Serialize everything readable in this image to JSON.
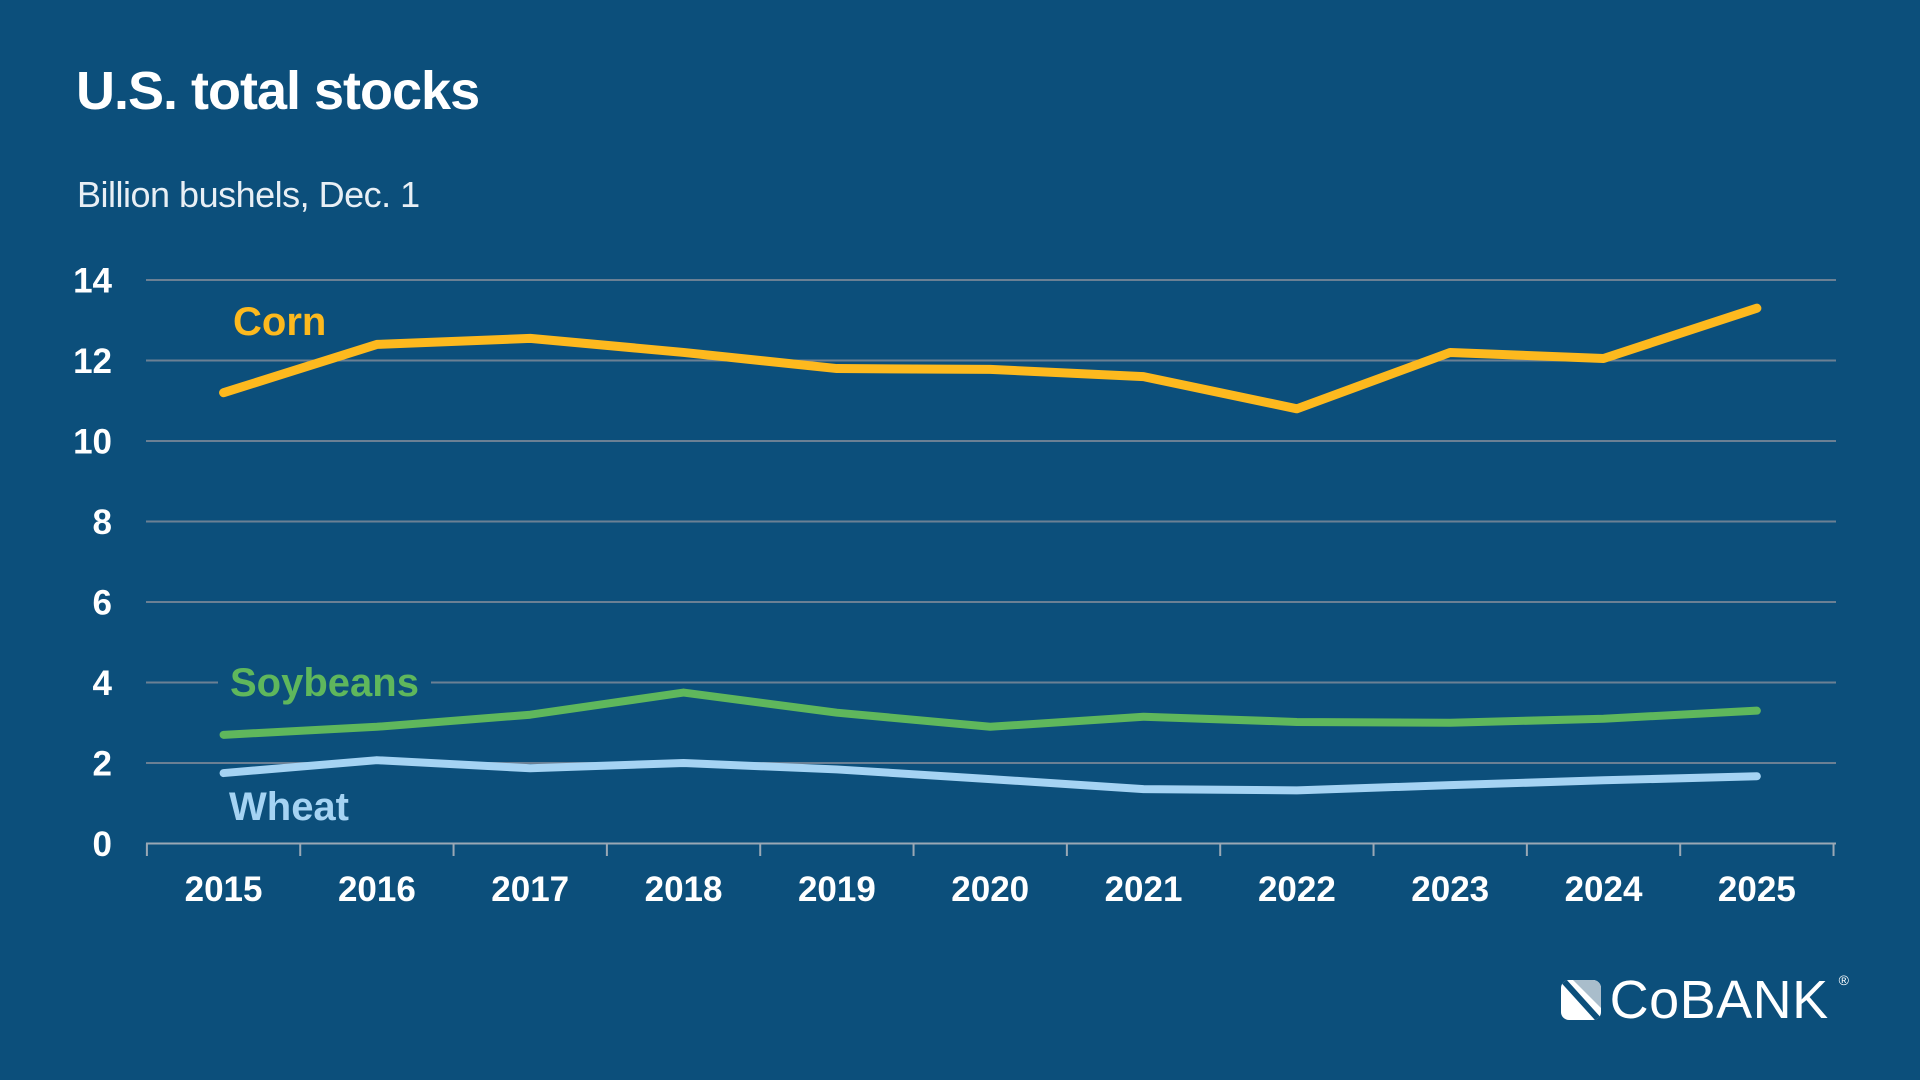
{
  "header": {
    "title": "U.S. total stocks",
    "subtitle": "Billion bushels, Dec. 1"
  },
  "colors": {
    "bg": "#0C4F7B",
    "title": "#FFFFFF",
    "subtitle": "#E8EFF5",
    "gridline": "#6B8094",
    "axis": "#9AA8B5",
    "tick_label": "#FFFFFF",
    "corn": "#FDB91E",
    "soybeans": "#5FB75C",
    "wheat": "#A5D3F3",
    "logo_flag": "#A9BDCB",
    "logo_text": "#FFFFFF"
  },
  "chart_data": {
    "type": "line",
    "title": "U.S. total stocks",
    "subtitle": "Billion bushels, Dec. 1",
    "x": [
      2015,
      2016,
      2017,
      2018,
      2019,
      2020,
      2021,
      2022,
      2023,
      2024,
      2025
    ],
    "series": [
      {
        "name": "Corn",
        "color": "#FDB91E",
        "values": [
          11.2,
          12.4,
          12.55,
          12.2,
          11.8,
          11.78,
          11.6,
          10.8,
          12.2,
          12.05,
          13.3
        ]
      },
      {
        "name": "Soybeans",
        "color": "#5FB75C",
        "values": [
          2.7,
          2.9,
          3.2,
          3.75,
          3.25,
          2.9,
          3.15,
          3.02,
          3.0,
          3.1,
          3.3
        ]
      },
      {
        "name": "Wheat",
        "color": "#A5D3F3",
        "values": [
          1.75,
          2.07,
          1.87,
          2.0,
          1.84,
          1.6,
          1.35,
          1.32,
          1.45,
          1.57,
          1.67
        ]
      }
    ],
    "ylim": [
      0,
      14
    ],
    "ytick_step": 2,
    "grid": true,
    "legend_position": "inline-labels"
  },
  "logo": {
    "brand": "CoBANK",
    "registered_mark": "®"
  }
}
